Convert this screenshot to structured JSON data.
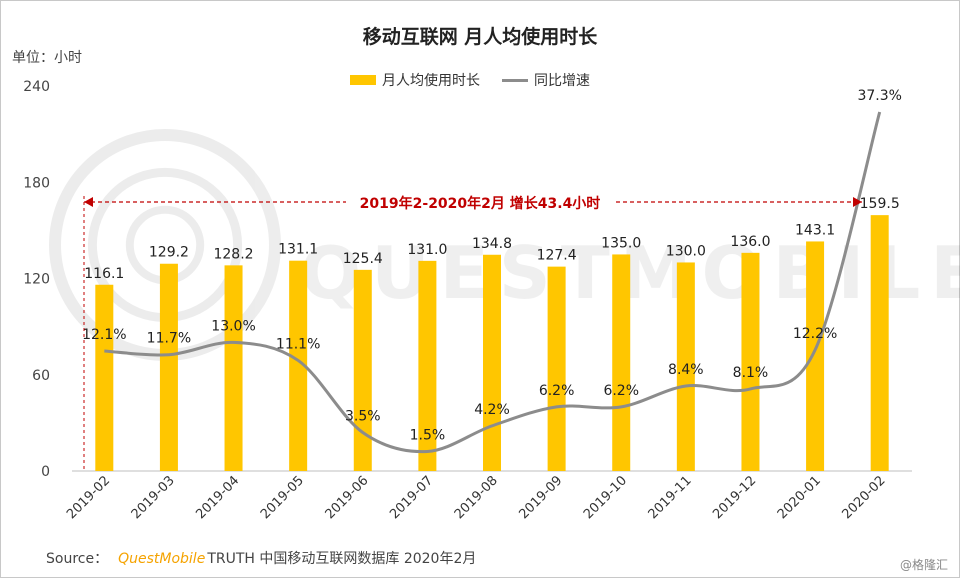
{
  "chart_data": {
    "type": "bar",
    "title": "移动互联网 月人均使用时长",
    "unit_label": "单位：小时",
    "categories": [
      "2019-02",
      "2019-03",
      "2019-04",
      "2019-05",
      "2019-06",
      "2019-07",
      "2019-08",
      "2019-09",
      "2019-10",
      "2019-11",
      "2019-12",
      "2020-01",
      "2020-02"
    ],
    "series": [
      {
        "name": "月人均使用时长",
        "type": "bar",
        "color": "#FFC600",
        "values": [
          116.1,
          129.2,
          128.2,
          131.1,
          125.4,
          131.0,
          134.8,
          127.4,
          135.0,
          130.0,
          136.0,
          143.1,
          159.5
        ],
        "labels": [
          "116.1",
          "129.2",
          "128.2",
          "131.1",
          "125.4",
          "131.0",
          "134.8",
          "127.4",
          "135.0",
          "130.0",
          "136.0",
          "143.1",
          "159.5"
        ]
      },
      {
        "name": "同比增速",
        "type": "line",
        "color": "#8c8c8c",
        "values": [
          12.1,
          11.7,
          13.0,
          11.1,
          3.5,
          1.5,
          4.2,
          6.2,
          6.2,
          8.4,
          8.1,
          12.2,
          37.3
        ],
        "labels": [
          "12.1%",
          "11.7%",
          "13.0%",
          "11.1%",
          "3.5%",
          "1.5%",
          "4.2%",
          "6.2%",
          "6.2%",
          "8.4%",
          "8.1%",
          "12.2%",
          "37.3%"
        ]
      }
    ],
    "ylim": [
      0,
      240
    ],
    "yticks": [
      "0",
      "60",
      "120",
      "180",
      "240"
    ],
    "legend_position": "top-center",
    "annotation": {
      "text": "2019年2-2020年2月  增长43.4小时",
      "color": "#C00000"
    }
  },
  "source": {
    "prefix": "Source：",
    "brand": "QuestMobile",
    "rest": "TRUTH 中国移动互联网数据库 2020年2月"
  },
  "credit": "@格隆汇",
  "watermark": "QUESTMOBILE"
}
